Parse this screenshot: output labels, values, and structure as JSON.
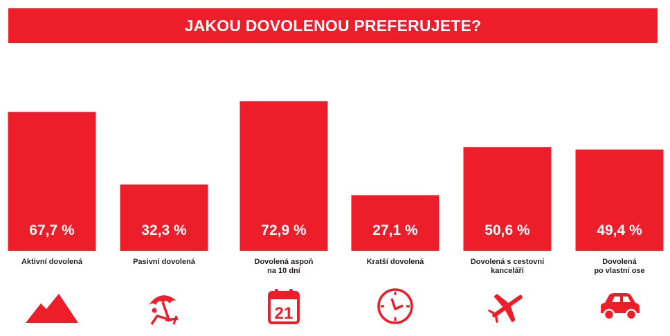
{
  "colors": {
    "accent": "#ee1d2a",
    "text": "#231f20",
    "value_text": "#ffffff"
  },
  "chart_data": {
    "type": "bar",
    "title": "JAKOU DOVOLENOU PREFERUJETE?",
    "categories": [
      "Aktivní dovolená",
      "Pasivní dovolená",
      "Dovolená aspoň\nna 10 dní",
      "Kratší dovolená",
      "Dovolená s cestovní\nkanceláří",
      "Dovolená\npo vlastní ose"
    ],
    "values": [
      67.7,
      32.3,
      72.9,
      27.1,
      50.6,
      49.4
    ],
    "value_labels": [
      "67,7 %",
      "32,3 %",
      "72,9 %",
      "27,1 %",
      "50,6 %",
      "49,4 %"
    ],
    "icons": [
      "mountains-icon",
      "beach-umbrella-icon",
      "calendar-icon",
      "clock-icon",
      "airplane-icon",
      "car-icon"
    ],
    "calendar_icon_text": "21",
    "ylim": [
      0,
      100
    ],
    "grid": false,
    "legend": "none"
  }
}
